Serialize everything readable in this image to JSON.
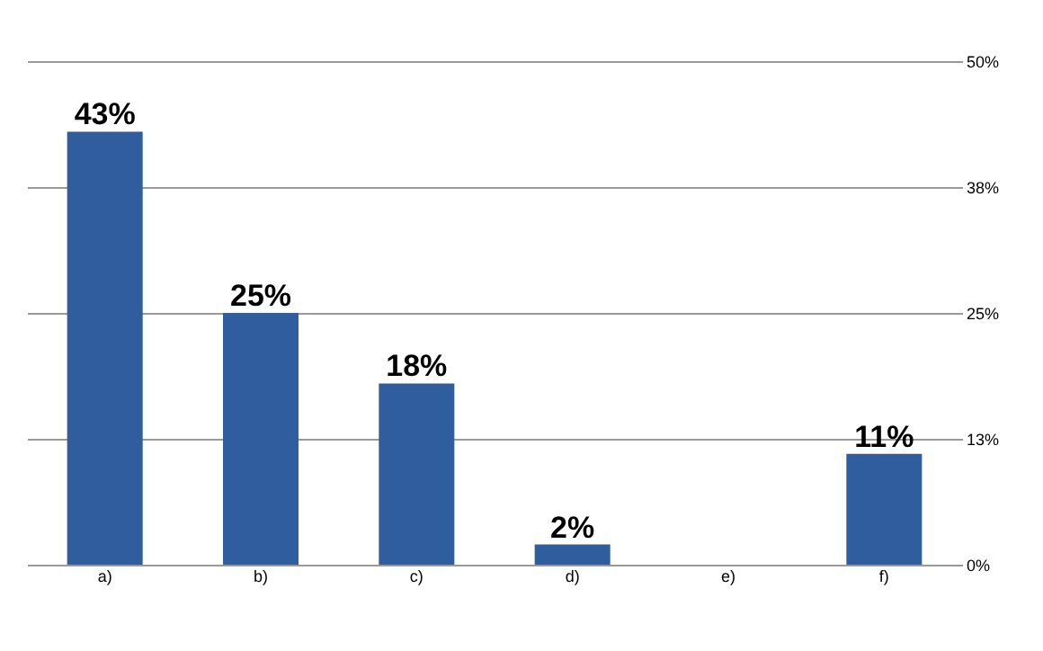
{
  "chart_data": {
    "type": "bar",
    "categories": [
      "a)",
      "b)",
      "c)",
      "d)",
      "e)",
      "f)"
    ],
    "values": [
      43,
      25,
      18,
      2,
      null,
      11
    ],
    "value_labels": [
      "43%",
      "25%",
      "18%",
      "2%",
      null,
      "11%"
    ],
    "color": "#2f5d9e",
    "ylim": [
      0,
      50
    ],
    "yticks": [
      {
        "value": 0,
        "label": "0%"
      },
      {
        "value": 12.5,
        "label": "13%"
      },
      {
        "value": 25,
        "label": "25%"
      },
      {
        "value": 37.5,
        "label": "38%"
      },
      {
        "value": 50,
        "label": "50%"
      }
    ],
    "grid": "y"
  }
}
